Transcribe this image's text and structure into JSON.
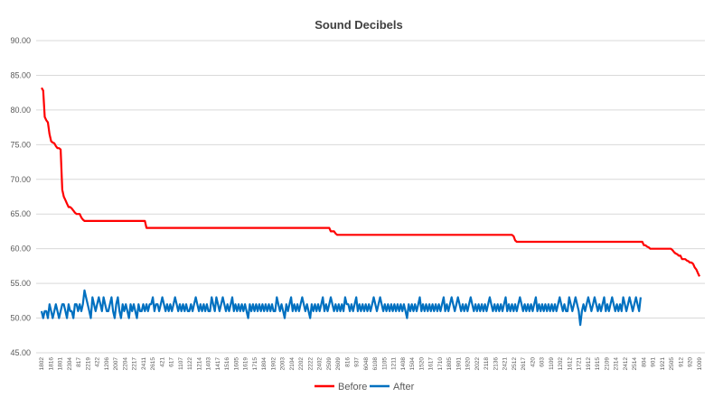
{
  "chart_data": {
    "type": "line",
    "title": "Sound Decibels",
    "xlabel": "",
    "ylabel": "",
    "ylim": [
      45,
      90
    ],
    "y_ticks": [
      "45.00",
      "50.00",
      "55.00",
      "60.00",
      "65.00",
      "70.00",
      "75.00",
      "80.00",
      "85.00",
      "90.00"
    ],
    "grid": true,
    "legend_position": "bottom",
    "x_tick_labels": [
      "1802",
      "1816",
      "1801",
      "2304",
      "817",
      "2219",
      "422",
      "1206",
      "2007",
      "2204",
      "2217",
      "2411",
      "2615",
      "421",
      "617",
      "1107",
      "1122",
      "1214",
      "1403",
      "1417",
      "1516",
      "1605",
      "1619",
      "1715",
      "1804",
      "1902",
      "2003",
      "2104",
      "2202",
      "2222",
      "2402",
      "2509",
      "2609",
      "816",
      "937",
      "6048",
      "6108",
      "1105",
      "1211",
      "1408",
      "1504",
      "1520",
      "1617",
      "1710",
      "1805",
      "1901",
      "1920",
      "2022",
      "2118",
      "2136",
      "2421",
      "2512",
      "2617",
      "420",
      "603",
      "1109",
      "1202",
      "1612",
      "1721",
      "1912",
      "1915",
      "2109",
      "2314",
      "2412",
      "2514",
      "804",
      "901",
      "1921",
      "2505",
      "912",
      "920",
      "1009"
    ],
    "colors": {
      "before": "#ff0000",
      "after": "#0070c0"
    },
    "series": [
      {
        "name": "Before",
        "values": [
          83.2,
          82.8,
          79.0,
          78.5,
          78.2,
          76.5,
          75.5,
          75.3,
          75.2,
          74.8,
          74.5,
          74.5,
          74.3,
          68.5,
          67.5,
          67.0,
          66.5,
          66.0,
          66.0,
          65.8,
          65.5,
          65.2,
          65.0,
          65.0,
          65.0,
          64.5,
          64.2,
          64.0,
          64.0,
          64.0,
          64.0,
          64.0,
          64.0,
          64.0,
          64.0,
          64.0,
          64.0,
          64.0,
          64.0,
          64.0,
          64.0,
          64.0,
          64.0,
          64.0,
          64.0,
          64.0,
          64.0,
          64.0,
          64.0,
          64.0,
          64.0,
          64.0,
          64.0,
          64.0,
          64.0,
          64.0,
          64.0,
          64.0,
          64.0,
          64.0,
          64.0,
          64.0,
          64.0,
          64.0,
          64.0,
          64.0,
          63.0,
          63.0,
          63.0,
          63.0,
          63.0,
          63.0,
          63.0,
          63.0,
          63.0,
          63.0,
          63.0,
          63.0,
          63.0,
          63.0,
          63.0,
          63.0,
          63.0,
          63.0,
          63.0,
          63.0,
          63.0,
          63.0,
          63.0,
          63.0,
          63.0,
          63.0,
          63.0,
          63.0,
          63.0,
          63.0,
          63.0,
          63.0,
          63.0,
          63.0,
          63.0,
          63.0,
          63.0,
          63.0,
          63.0,
          63.0,
          63.0,
          63.0,
          63.0,
          63.0,
          63.0,
          63.0,
          63.0,
          63.0,
          63.0,
          63.0,
          63.0,
          63.0,
          63.0,
          63.0,
          63.0,
          63.0,
          63.0,
          63.0,
          63.0,
          63.0,
          63.0,
          63.0,
          63.0,
          63.0,
          63.0,
          63.0,
          63.0,
          63.0,
          63.0,
          63.0,
          63.0,
          63.0,
          63.0,
          63.0,
          63.0,
          63.0,
          63.0,
          63.0,
          63.0,
          63.0,
          63.0,
          63.0,
          63.0,
          63.0,
          63.0,
          63.0,
          63.0,
          63.0,
          63.0,
          63.0,
          63.0,
          63.0,
          63.0,
          63.0,
          63.0,
          63.0,
          63.0,
          63.0,
          63.0,
          63.0,
          63.0,
          63.0,
          63.0,
          63.0,
          63.0,
          63.0,
          63.0,
          63.0,
          63.0,
          63.0,
          63.0,
          63.0,
          63.0,
          63.0,
          63.0,
          63.0,
          62.5,
          62.5,
          62.5,
          62.2,
          62.0,
          62.0,
          62.0,
          62.0,
          62.0,
          62.0,
          62.0,
          62.0,
          62.0,
          62.0,
          62.0,
          62.0,
          62.0,
          62.0,
          62.0,
          62.0,
          62.0,
          62.0,
          62.0,
          62.0,
          62.0,
          62.0,
          62.0,
          62.0,
          62.0,
          62.0,
          62.0,
          62.0,
          62.0,
          62.0,
          62.0,
          62.0,
          62.0,
          62.0,
          62.0,
          62.0,
          62.0,
          62.0,
          62.0,
          62.0,
          62.0,
          62.0,
          62.0,
          62.0,
          62.0,
          62.0,
          62.0,
          62.0,
          62.0,
          62.0,
          62.0,
          62.0,
          62.0,
          62.0,
          62.0,
          62.0,
          62.0,
          62.0,
          62.0,
          62.0,
          62.0,
          62.0,
          62.0,
          62.0,
          62.0,
          62.0,
          62.0,
          62.0,
          62.0,
          62.0,
          62.0,
          62.0,
          62.0,
          62.0,
          62.0,
          62.0,
          62.0,
          62.0,
          62.0,
          62.0,
          62.0,
          62.0,
          62.0,
          62.0,
          62.0,
          62.0,
          62.0,
          62.0,
          62.0,
          62.0,
          62.0,
          62.0,
          62.0,
          62.0,
          62.0,
          62.0,
          62.0,
          62.0,
          62.0,
          62.0,
          62.0,
          62.0,
          62.0,
          62.0,
          62.0,
          62.0,
          62.0,
          62.0,
          62.0,
          62.0,
          62.0,
          61.8,
          61.2,
          61.0,
          61.0,
          61.0,
          61.0,
          61.0,
          61.0,
          61.0,
          61.0,
          61.0,
          61.0,
          61.0,
          61.0,
          61.0,
          61.0,
          61.0,
          61.0,
          61.0,
          61.0,
          61.0,
          61.0,
          61.0,
          61.0,
          61.0,
          61.0,
          61.0,
          61.0,
          61.0,
          61.0,
          61.0,
          61.0,
          61.0,
          61.0,
          61.0,
          61.0,
          61.0,
          61.0,
          61.0,
          61.0,
          61.0,
          61.0,
          61.0,
          61.0,
          61.0,
          61.0,
          61.0,
          61.0,
          61.0,
          61.0,
          61.0,
          61.0,
          61.0,
          61.0,
          61.0,
          61.0,
          61.0,
          61.0,
          61.0,
          61.0,
          61.0,
          61.0,
          61.0,
          61.0,
          61.0,
          61.0,
          61.0,
          61.0,
          61.0,
          61.0,
          61.0,
          61.0,
          61.0,
          61.0,
          61.0,
          61.0,
          61.0,
          61.0,
          61.0,
          61.0,
          61.0,
          61.0,
          60.5,
          60.5,
          60.3,
          60.2,
          60.0,
          60.0,
          60.0,
          60.0,
          60.0,
          60.0,
          60.0,
          60.0,
          60.0,
          60.0,
          60.0,
          60.0,
          60.0,
          60.0,
          59.8,
          59.5,
          59.3,
          59.2,
          59.0,
          59.0,
          58.5,
          58.5,
          58.5,
          58.3,
          58.2,
          58.0,
          58.0,
          57.8,
          57.3,
          57.0,
          56.5,
          56.0
        ]
      },
      {
        "name": "After",
        "values": [
          51,
          50,
          51,
          51,
          50,
          52,
          51,
          50,
          51,
          52,
          51,
          50,
          51,
          52,
          52,
          51,
          50,
          52,
          51,
          51,
          50,
          52,
          52,
          51,
          52,
          51,
          52,
          54,
          53,
          52,
          51,
          50,
          53,
          52,
          51,
          52,
          53,
          52,
          51,
          53,
          52,
          51,
          51,
          52,
          53,
          51,
          50,
          52,
          53,
          51,
          50,
          52,
          51,
          52,
          51,
          50,
          52,
          51,
          52,
          51,
          50,
          52,
          51,
          51,
          52,
          51,
          52,
          51,
          52,
          52,
          53,
          51,
          52,
          52,
          51,
          52,
          53,
          52,
          51,
          52,
          51,
          52,
          51,
          52,
          53,
          52,
          51,
          52,
          51,
          52,
          51,
          52,
          51,
          51,
          52,
          51,
          52,
          53,
          52,
          51,
          52,
          51,
          52,
          51,
          52,
          51,
          51,
          53,
          52,
          51,
          53,
          52,
          51,
          52,
          53,
          52,
          51,
          52,
          51,
          52,
          53,
          51,
          52,
          51,
          52,
          51,
          52,
          51,
          52,
          51,
          50,
          52,
          51,
          52,
          51,
          52,
          51,
          52,
          51,
          52,
          51,
          52,
          51,
          52,
          51,
          52,
          51,
          51,
          53,
          52,
          51,
          52,
          51,
          50,
          52,
          51,
          52,
          53,
          51,
          52,
          51,
          52,
          51,
          52,
          53,
          52,
          51,
          52,
          51,
          50,
          52,
          51,
          52,
          51,
          52,
          51,
          52,
          53,
          51,
          52,
          51,
          52,
          53,
          52,
          51,
          52,
          51,
          52,
          51,
          52,
          51,
          53,
          52,
          52,
          51,
          52,
          51,
          52,
          53,
          51,
          52,
          51,
          52,
          51,
          52,
          51,
          52,
          51,
          52,
          53,
          52,
          51,
          52,
          53,
          52,
          51,
          52,
          51,
          52,
          51,
          52,
          51,
          52,
          51,
          52,
          51,
          52,
          51,
          52,
          51,
          50,
          52,
          51,
          52,
          51,
          52,
          51,
          52,
          53,
          51,
          52,
          51,
          52,
          51,
          52,
          51,
          52,
          51,
          52,
          51,
          52,
          51,
          52,
          53,
          51,
          52,
          51,
          52,
          53,
          52,
          51,
          52,
          53,
          52,
          51,
          52,
          51,
          52,
          51,
          52,
          53,
          52,
          51,
          52,
          51,
          52,
          51,
          52,
          51,
          52,
          51,
          52,
          53,
          52,
          51,
          52,
          51,
          52,
          51,
          52,
          51,
          52,
          53,
          51,
          52,
          51,
          52,
          51,
          52,
          51,
          52,
          53,
          52,
          51,
          52,
          51,
          52,
          51,
          52,
          51,
          52,
          53,
          51,
          52,
          51,
          52,
          51,
          52,
          51,
          52,
          51,
          52,
          51,
          52,
          51,
          52,
          53,
          52,
          51,
          52,
          51,
          51,
          53,
          52,
          51,
          52,
          53,
          52,
          51,
          49,
          51,
          52,
          51,
          52,
          53,
          52,
          51,
          52,
          53,
          52,
          51,
          52,
          51,
          52,
          53,
          51,
          52,
          51,
          52,
          53,
          52,
          51,
          52,
          51,
          52,
          51,
          53,
          52,
          51,
          52,
          53,
          52,
          51,
          52,
          53,
          52,
          51,
          53
        ]
      }
    ]
  }
}
